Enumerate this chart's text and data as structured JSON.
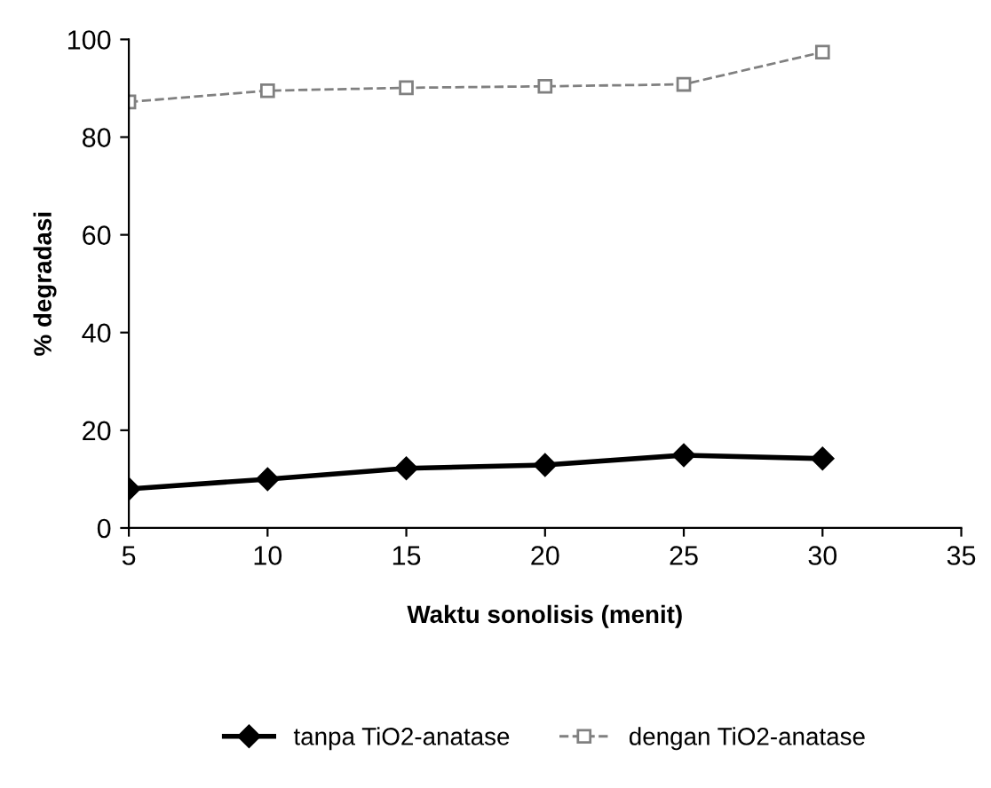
{
  "chart_data": {
    "type": "line",
    "xlabel": "Waktu sonolisis (menit)",
    "ylabel": "% degradasi",
    "x": [
      5,
      10,
      15,
      20,
      25,
      30
    ],
    "series": [
      {
        "name": "tanpa TiO2-anatase",
        "color": "#000000",
        "marker": "diamond",
        "line_style": "solid",
        "values": [
          8,
          10,
          12.2,
          12.9,
          14.9,
          14.2
        ]
      },
      {
        "name": "dengan TiO2-anatase",
        "color": "#808080",
        "marker": "square",
        "line_style": "dashed",
        "values": [
          87.2,
          89.5,
          90.1,
          90.4,
          90.8,
          97.4
        ]
      }
    ],
    "xlim": [
      5,
      35
    ],
    "xticks": [
      5,
      10,
      15,
      20,
      25,
      30,
      35
    ],
    "ylim": [
      0,
      100
    ],
    "yticks": [
      0,
      20,
      40,
      60,
      80,
      100
    ],
    "legend": "bottom"
  }
}
